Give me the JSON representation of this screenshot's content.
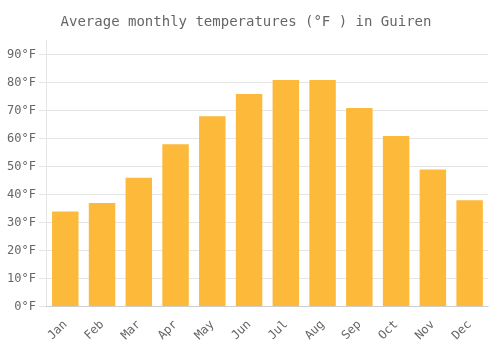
{
  "chart_data": {
    "type": "bar",
    "title": "Average monthly temperatures (°F ) in Guiren",
    "categories": [
      "Jan",
      "Feb",
      "Mar",
      "Apr",
      "May",
      "Jun",
      "Jul",
      "Aug",
      "Sep",
      "Oct",
      "Nov",
      "Dec"
    ],
    "values": [
      34,
      37,
      46,
      58,
      68,
      76,
      81,
      81,
      71,
      61,
      49,
      38
    ],
    "color": "#FDB93A",
    "ylim": [
      0,
      95
    ],
    "yticks": [
      {
        "value": 0,
        "label": "0°F"
      },
      {
        "value": 10,
        "label": "10°F"
      },
      {
        "value": 20,
        "label": "20°F"
      },
      {
        "value": 30,
        "label": "30°F"
      },
      {
        "value": 40,
        "label": "40°F"
      },
      {
        "value": 50,
        "label": "50°F"
      },
      {
        "value": 60,
        "label": "60°F"
      },
      {
        "value": 70,
        "label": "70°F"
      },
      {
        "value": 80,
        "label": "80°F"
      },
      {
        "value": 90,
        "label": "90°F"
      }
    ],
    "grid": true
  }
}
